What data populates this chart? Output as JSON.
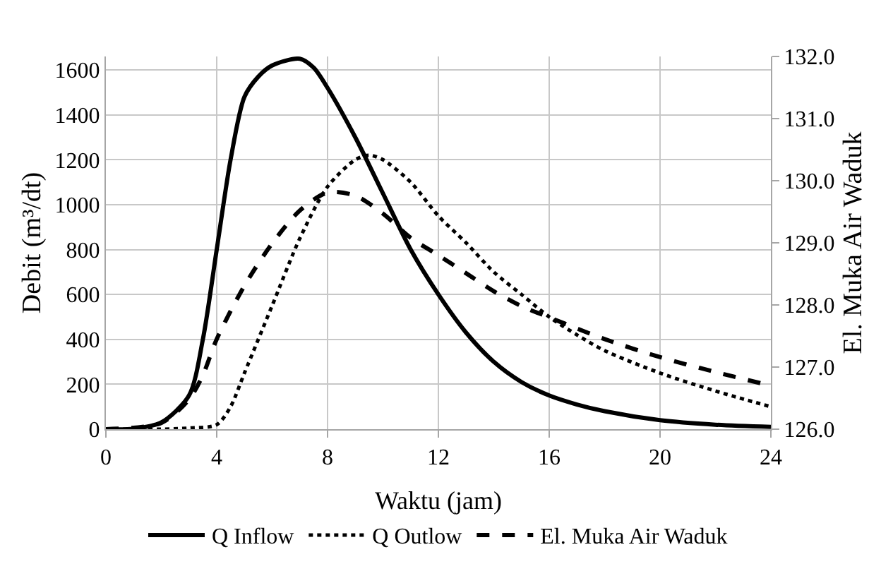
{
  "chart_data": {
    "type": "line",
    "xlabel": "Waktu (jam)",
    "ylabel": "Debit (m³/dt)",
    "y2label": "El. Muka Air Waduk",
    "xlim": [
      0,
      24
    ],
    "xticks": [
      0,
      4,
      8,
      12,
      16,
      20,
      24
    ],
    "ylim": [
      0,
      1660
    ],
    "yticks": [
      0,
      200,
      400,
      600,
      800,
      1000,
      1200,
      1400,
      1600
    ],
    "y2lim": [
      126,
      132
    ],
    "y2ticks": [
      {
        "value": 126,
        "label": "126.0"
      },
      {
        "value": 127,
        "label": "127.0"
      },
      {
        "value": 128,
        "label": "128.0"
      },
      {
        "value": 129,
        "label": "129.0"
      },
      {
        "value": 130,
        "label": "130.0"
      },
      {
        "value": 131,
        "label": "131.0"
      },
      {
        "value": 132,
        "label": "132.0"
      }
    ],
    "grid": true,
    "legend": "bottom",
    "marker": "none",
    "series": [
      {
        "name": "Q Inflow",
        "color": "#000000",
        "line_style": "solid",
        "x": [
          0,
          1,
          2,
          3,
          3.5,
          4,
          4.5,
          5,
          5.5,
          6,
          7,
          7.5,
          8,
          9,
          10,
          11,
          12,
          13,
          14,
          15,
          16,
          17,
          18,
          20,
          22,
          24
        ],
        "values": [
          0,
          2,
          30,
          150,
          400,
          800,
          1200,
          1480,
          1570,
          1620,
          1650,
          1610,
          1520,
          1300,
          1050,
          800,
          600,
          430,
          300,
          210,
          150,
          110,
          80,
          40,
          20,
          10
        ]
      },
      {
        "name": "Q Outlow",
        "color": "#000000",
        "line_style": "dotted",
        "x": [
          0,
          2,
          3,
          4,
          4.5,
          5,
          6,
          7,
          8,
          9,
          9.5,
          10,
          11,
          12,
          13,
          14,
          15,
          16,
          17,
          18,
          20,
          22,
          24
        ],
        "values": [
          0,
          0,
          5,
          20,
          100,
          250,
          550,
          850,
          1080,
          1200,
          1220,
          1200,
          1100,
          950,
          830,
          700,
          600,
          500,
          420,
          350,
          250,
          170,
          100
        ]
      },
      {
        "name": "El. Muka Air Waduk",
        "color": "#000000",
        "line_style": "dashed",
        "axis": "y2",
        "x": [
          0,
          2,
          3,
          3.5,
          4,
          5,
          6,
          7,
          8,
          9,
          10,
          11,
          12,
          13,
          14,
          15,
          16,
          18,
          20,
          22,
          24
        ],
        "values": [
          126.0,
          126.1,
          126.48,
          126.87,
          127.45,
          128.31,
          128.99,
          129.52,
          129.81,
          129.76,
          129.47,
          129.08,
          128.8,
          128.51,
          128.22,
          127.98,
          127.8,
          127.45,
          127.16,
          126.92,
          126.7
        ]
      }
    ]
  }
}
